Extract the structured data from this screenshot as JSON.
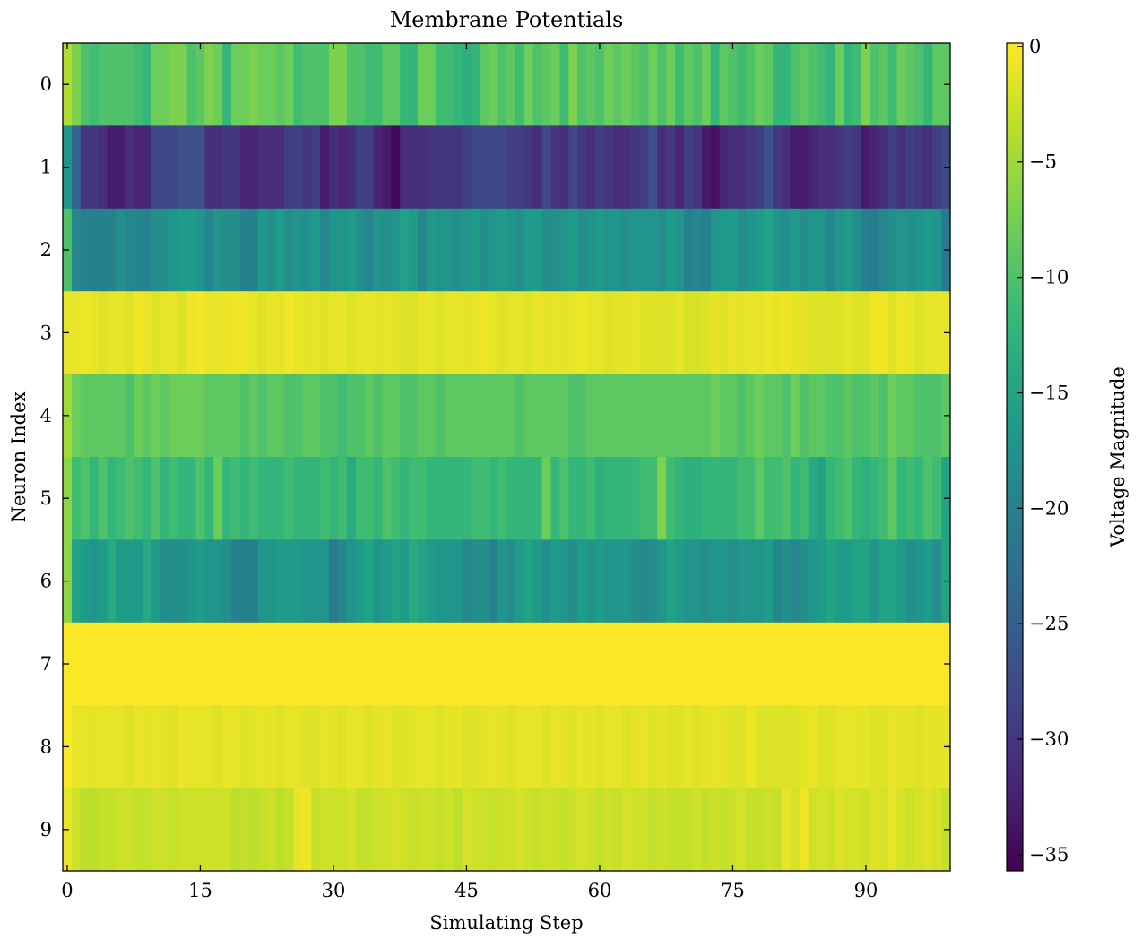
{
  "chart_data": {
    "type": "heatmap",
    "title": "Membrane Potentials",
    "xlabel": "Simulating Step",
    "ylabel": "Neuron Index",
    "colorbar_label": "Voltage Magnitude",
    "colormap": "viridis",
    "color_range": [
      -35.7,
      0.15
    ],
    "x_ticks": [
      0,
      15,
      30,
      45,
      60,
      75,
      90
    ],
    "x_tick_labels": [
      "0",
      "15",
      "30",
      "45",
      "60",
      "75",
      "90"
    ],
    "y_ticks": [
      0,
      1,
      2,
      3,
      4,
      5,
      6,
      7,
      8,
      9
    ],
    "y_tick_labels": [
      "0",
      "1",
      "2",
      "3",
      "4",
      "5",
      "6",
      "7",
      "8",
      "9"
    ],
    "colorbar_ticks": [
      0,
      -5,
      -10,
      -15,
      -20,
      -25,
      -30,
      -35
    ],
    "colorbar_tick_labels": [
      "0",
      "−5",
      "−10",
      "−15",
      "−20",
      "−25",
      "−30",
      "−35"
    ],
    "grid": false,
    "rows": [
      [
        -4,
        -7,
        -10,
        -11,
        -10,
        -10,
        -10,
        -10,
        -11,
        -12,
        -8,
        -8,
        -7,
        -7,
        -10,
        -9,
        -7,
        -8,
        -12,
        -8,
        -8,
        -7,
        -8,
        -8,
        -9,
        -8,
        -11,
        -10,
        -10,
        -10,
        -7,
        -7,
        -10,
        -10,
        -11,
        -11,
        -9,
        -9,
        -12,
        -12,
        -8,
        -8,
        -11,
        -11,
        -12,
        -13,
        -12,
        -9,
        -8,
        -10,
        -9,
        -11,
        -8,
        -10,
        -9,
        -8,
        -11,
        -7,
        -10,
        -9,
        -10,
        -8,
        -9,
        -8,
        -9,
        -10,
        -8,
        -10,
        -8,
        -11,
        -9,
        -10,
        -8,
        -12,
        -9,
        -10,
        -11,
        -10,
        -8,
        -9,
        -12,
        -12,
        -10,
        -9,
        -10,
        -11,
        -12,
        -8,
        -12,
        -11,
        -7,
        -10,
        -9,
        -11,
        -8,
        -9,
        -10,
        -12,
        -9,
        -9
      ],
      [
        -17,
        -24,
        -30,
        -30,
        -31,
        -33,
        -33,
        -31,
        -32,
        -32,
        -28,
        -28,
        -28,
        -27,
        -27,
        -27,
        -31,
        -31,
        -30,
        -30,
        -32,
        -32,
        -31,
        -31,
        -31,
        -29,
        -29,
        -30,
        -29,
        -33,
        -31,
        -32,
        -31,
        -29,
        -29,
        -32,
        -33,
        -35,
        -31,
        -31,
        -31,
        -30,
        -30,
        -30,
        -30,
        -29,
        -28,
        -28,
        -28,
        -28,
        -29,
        -29,
        -30,
        -31,
        -28,
        -30,
        -31,
        -28,
        -30,
        -31,
        -29,
        -30,
        -31,
        -31,
        -30,
        -29,
        -27,
        -31,
        -30,
        -32,
        -29,
        -30,
        -33,
        -34,
        -32,
        -31,
        -31,
        -30,
        -29,
        -27,
        -30,
        -31,
        -33,
        -33,
        -32,
        -31,
        -31,
        -30,
        -29,
        -30,
        -33,
        -32,
        -31,
        -29,
        -31,
        -29,
        -30,
        -31,
        -29,
        -28
      ],
      [
        -10,
        -19,
        -20,
        -20,
        -20,
        -20,
        -18,
        -19,
        -19,
        -20,
        -18,
        -18,
        -17,
        -16,
        -16,
        -17,
        -19,
        -17,
        -18,
        -18,
        -20,
        -20,
        -17,
        -18,
        -16,
        -18,
        -17,
        -18,
        -16,
        -19,
        -17,
        -17,
        -16,
        -18,
        -19,
        -17,
        -18,
        -17,
        -15,
        -16,
        -19,
        -16,
        -17,
        -17,
        -18,
        -17,
        -16,
        -18,
        -17,
        -16,
        -17,
        -18,
        -16,
        -16,
        -18,
        -18,
        -17,
        -16,
        -18,
        -17,
        -16,
        -17,
        -17,
        -18,
        -17,
        -17,
        -17,
        -18,
        -16,
        -17,
        -20,
        -19,
        -20,
        -17,
        -16,
        -16,
        -18,
        -17,
        -16,
        -15,
        -17,
        -18,
        -16,
        -18,
        -17,
        -17,
        -19,
        -17,
        -16,
        -18,
        -20,
        -21,
        -19,
        -18,
        -17,
        -18,
        -17,
        -16,
        -17,
        -21
      ],
      [
        -1,
        -1,
        -0.5,
        -1,
        -1.5,
        -1,
        -1,
        -1.5,
        -0.5,
        -1,
        -1.5,
        -1,
        -1,
        -1.5,
        -0.5,
        -0.3,
        -1,
        -1,
        -0.8,
        -0.5,
        -0.5,
        -1.2,
        -1.5,
        -1,
        -1.2,
        -0.4,
        -1,
        -1.2,
        -1,
        -1.5,
        -1,
        -1,
        -1.5,
        -1.2,
        -1,
        -1.2,
        -1,
        -1.2,
        -1.5,
        -1.5,
        -1,
        -1.2,
        -1.5,
        -1,
        -1,
        -1.2,
        -1,
        -0.5,
        -1.2,
        -1.5,
        -1.2,
        -1,
        -1.5,
        -1,
        -1.2,
        -1,
        -1.2,
        -1,
        -0.5,
        -1,
        -1.2,
        -1.5,
        -1.3,
        -1.2,
        -1,
        -1.4,
        -1.5,
        -1.5,
        -1.5,
        -1.2,
        -2,
        -2,
        -1.5,
        -1.2,
        -1.5,
        -1,
        -1.2,
        -1,
        -1,
        -0.7,
        -1,
        -0.7,
        -1.2,
        -1.2,
        -1.5,
        -1.5,
        -1.5,
        -1.5,
        -1.2,
        -1.5,
        -1.5,
        -0.5,
        -0.5,
        -1.5,
        -0.5,
        -1,
        -1.5,
        -1.2,
        -1,
        -1
      ],
      [
        -5,
        -8,
        -9,
        -9,
        -9,
        -9,
        -9,
        -10,
        -8,
        -9,
        -8,
        -9,
        -8,
        -8,
        -8,
        -8,
        -9,
        -9,
        -9,
        -9,
        -10,
        -9,
        -10,
        -9,
        -9,
        -10,
        -10,
        -9,
        -9,
        -10,
        -10,
        -11,
        -10,
        -10,
        -9,
        -10,
        -9,
        -9,
        -10,
        -10,
        -9,
        -9,
        -10,
        -9,
        -9,
        -9,
        -9,
        -9,
        -9,
        -9,
        -9,
        -10,
        -9,
        -9,
        -9,
        -9,
        -9,
        -10,
        -10,
        -9,
        -9,
        -9,
        -9,
        -9,
        -9,
        -9,
        -9,
        -9,
        -9,
        -9,
        -9,
        -9,
        -9,
        -8,
        -9,
        -9,
        -10,
        -9,
        -8,
        -9,
        -9,
        -10,
        -8,
        -10,
        -9,
        -9,
        -10,
        -10,
        -9,
        -10,
        -10,
        -9,
        -10,
        -8,
        -9,
        -9,
        -10,
        -10,
        -10,
        -9
      ],
      [
        -6,
        -11,
        -10,
        -12,
        -10,
        -12,
        -11,
        -10,
        -11,
        -12,
        -10,
        -12,
        -11,
        -12,
        -12,
        -10,
        -12,
        -8,
        -12,
        -11,
        -12,
        -11,
        -12,
        -12,
        -12,
        -11,
        -12,
        -12,
        -12,
        -11,
        -12,
        -11,
        -14,
        -11,
        -11,
        -12,
        -10,
        -11,
        -12,
        -11,
        -11,
        -12,
        -12,
        -12,
        -12,
        -12,
        -11,
        -11,
        -12,
        -11,
        -12,
        -12,
        -12,
        -12,
        -8,
        -12,
        -10,
        -12,
        -12,
        -11,
        -13,
        -12,
        -12,
        -12,
        -12,
        -11,
        -11,
        -7,
        -11,
        -12,
        -13,
        -13,
        -12,
        -12,
        -12,
        -12,
        -11,
        -11,
        -9,
        -11,
        -11,
        -10,
        -12,
        -11,
        -14,
        -15,
        -12,
        -11,
        -10,
        -12,
        -13,
        -12,
        -11,
        -9,
        -12,
        -11,
        -12,
        -10,
        -11,
        -15
      ],
      [
        -6,
        -15,
        -16,
        -17,
        -16,
        -14,
        -16,
        -16,
        -16,
        -14,
        -16,
        -18,
        -18,
        -18,
        -17,
        -16,
        -17,
        -17,
        -18,
        -20,
        -20,
        -20,
        -17,
        -17,
        -16,
        -16,
        -16,
        -17,
        -17,
        -17,
        -21,
        -19,
        -17,
        -16,
        -15,
        -17,
        -16,
        -15,
        -16,
        -14,
        -15,
        -16,
        -17,
        -17,
        -17,
        -19,
        -18,
        -18,
        -20,
        -17,
        -18,
        -16,
        -15,
        -16,
        -18,
        -16,
        -17,
        -18,
        -16,
        -17,
        -16,
        -17,
        -17,
        -17,
        -18,
        -19,
        -18,
        -17,
        -15,
        -16,
        -17,
        -17,
        -18,
        -17,
        -17,
        -18,
        -17,
        -17,
        -17,
        -16,
        -19,
        -18,
        -19,
        -18,
        -17,
        -16,
        -15,
        -16,
        -16,
        -15,
        -15,
        -17,
        -15,
        -15,
        -16,
        -18,
        -17,
        -16,
        -18,
        -15
      ],
      [
        0,
        0,
        0,
        0,
        0,
        0,
        0,
        0,
        0,
        0,
        0,
        0,
        0,
        0,
        0,
        0,
        0,
        0,
        0,
        0,
        0,
        0,
        0,
        0,
        0,
        0,
        0,
        0,
        0,
        0,
        0,
        0,
        0,
        0,
        0,
        0,
        0,
        0,
        0,
        0,
        0,
        0,
        0,
        0,
        0,
        0,
        0,
        0,
        0,
        0,
        0,
        0,
        0,
        0,
        0,
        0,
        0,
        0,
        0,
        0,
        0,
        0,
        0,
        0,
        0,
        0,
        0,
        0,
        0,
        0,
        0,
        0,
        0,
        0,
        0,
        0,
        0,
        0,
        0,
        0,
        0,
        0,
        0,
        0,
        0,
        0,
        0,
        0,
        0,
        0,
        0,
        0,
        0,
        0,
        0,
        0,
        0,
        0,
        0,
        0
      ],
      [
        0,
        -1,
        -1,
        -1.2,
        -1,
        -1,
        -1.2,
        -1.5,
        -1,
        -1.2,
        -1,
        -1.2,
        -1.5,
        -0.8,
        -1.2,
        -1,
        -1.2,
        -1.5,
        -1,
        -1,
        -1.5,
        -1.2,
        -1,
        -1.2,
        -1.5,
        -1,
        -1.2,
        -1.5,
        -1.5,
        -1,
        -1.2,
        -1.5,
        -1,
        -1.2,
        -1.5,
        -1.2,
        -1,
        -1.5,
        -1.5,
        -1.2,
        -1,
        -1.2,
        -1.5,
        -1.2,
        -1,
        -1.5,
        -1.5,
        -1.2,
        -1,
        -1.2,
        -1.5,
        -1.2,
        -1,
        -1.2,
        -1.5,
        -1,
        -1.2,
        -1.5,
        -1,
        -1.2,
        -1.5,
        -1,
        -1.2,
        -1.5,
        -1.2,
        -1,
        -1.5,
        -1.2,
        -1.5,
        -1.5,
        -1.2,
        -1.5,
        -1.2,
        -1,
        -1.2,
        -1.5,
        -1.5,
        -0.8,
        -1.5,
        -1.8,
        -1.5,
        -1.8,
        -1.5,
        -1.2,
        -0.8,
        -1.5,
        -1.5,
        -1.2,
        -1,
        -1.2,
        -1.2,
        -1.5,
        -1.5,
        -1,
        -1.2,
        -1.2,
        -1.5,
        -1.2,
        -1.2,
        -1.2
      ],
      [
        -1,
        -2.5,
        -3.5,
        -3.5,
        -3,
        -3,
        -2.5,
        -2.5,
        -3,
        -3,
        -2.5,
        -2.5,
        -3,
        -2.5,
        -2.5,
        -2.5,
        -2.5,
        -2.5,
        -2.5,
        -3.5,
        -3,
        -3.5,
        -3,
        -2.5,
        -3.5,
        -3,
        -1,
        -0.5,
        -3,
        -2.5,
        -2.5,
        -2.5,
        -2,
        -3,
        -3,
        -2.5,
        -2.5,
        -2,
        -2.5,
        -3,
        -2.5,
        -2.5,
        -3,
        -2.5,
        -3.5,
        -2,
        -2.5,
        -2.5,
        -3,
        -2.5,
        -2.5,
        -2,
        -2.5,
        -3,
        -2.5,
        -2.5,
        -3,
        -2.5,
        -2,
        -2.5,
        -3,
        -2.5,
        -3,
        -2,
        -2.5,
        -2.5,
        -3,
        -2.5,
        -3,
        -3,
        -3,
        -2.5,
        -3,
        -2.5,
        -3,
        -2.5,
        -2,
        -3,
        -3,
        -2.5,
        -3,
        -1,
        -2,
        -0.5,
        -2.5,
        -2,
        -2.5,
        -1.5,
        -2,
        -2,
        -2.5,
        -1.5,
        -2,
        -1,
        -2,
        -2.5,
        -2,
        -1.5,
        -2,
        -3
      ]
    ]
  }
}
